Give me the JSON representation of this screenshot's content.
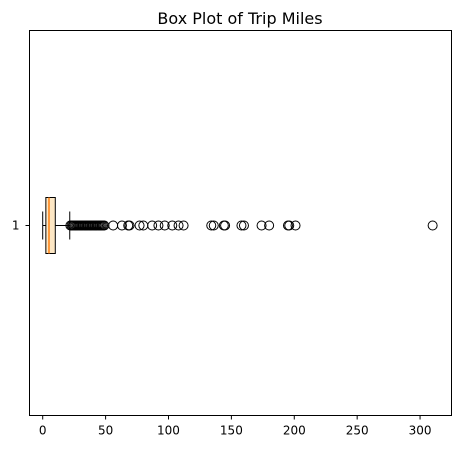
{
  "chart_data": {
    "type": "boxplot",
    "orientation": "horizontal",
    "title": "Box Plot of Trip Miles",
    "xlabel": "",
    "ylabel": "",
    "xlim": [
      -10.5,
      325
    ],
    "x_ticks": [
      0,
      50,
      100,
      150,
      200,
      250,
      300
    ],
    "y_ticks": [
      "1"
    ],
    "grid": false,
    "colors": {
      "box_fill": "#fde7c4",
      "median": "#ff7f0e",
      "outline": "#000000"
    },
    "boxes": [
      {
        "label": "1",
        "whisker_low": 0.0,
        "q1": 2.5,
        "median": 5.0,
        "q3": 10.0,
        "whisker_high": 21.5,
        "outliers": [
          22,
          23,
          24,
          25,
          26,
          27,
          28,
          29,
          30,
          31,
          32,
          33,
          34,
          35,
          36,
          37,
          38,
          39,
          40,
          41,
          42,
          43,
          44,
          45,
          46,
          47,
          48,
          49,
          56,
          63,
          68,
          69,
          77,
          80,
          87,
          92,
          97,
          103,
          108,
          112,
          134,
          136,
          144,
          145,
          158,
          160,
          174,
          180,
          195,
          196,
          201,
          310
        ]
      }
    ]
  }
}
